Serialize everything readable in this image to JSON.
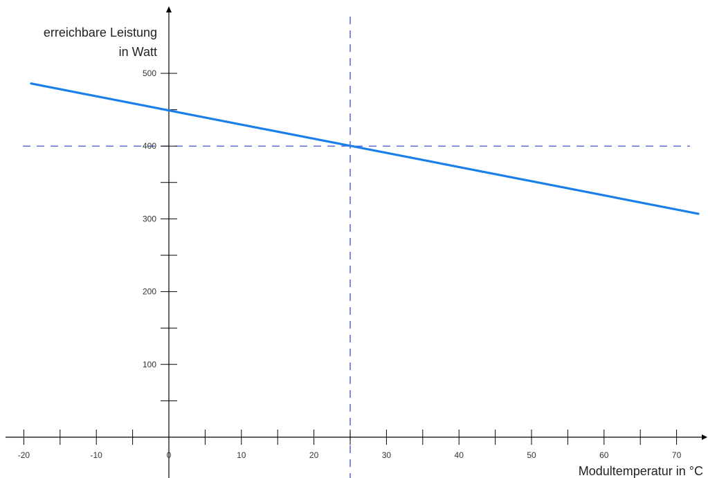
{
  "chart_data": {
    "type": "line",
    "ylabel_lines": [
      "erreichbare Leistung",
      "in Watt"
    ],
    "xlabel": "Modultemperatur in °C",
    "xlim": [
      -20,
      74
    ],
    "ylim": [
      0,
      530
    ],
    "x_tick_labels": [
      "-20",
      "-10",
      "0",
      "10",
      "20",
      "30",
      "40",
      "50",
      "60",
      "70"
    ],
    "y_tick_labels": [
      "100",
      "200",
      "300",
      "400",
      "500"
    ],
    "series": [
      {
        "x": [
          -19,
          73
        ],
        "y": [
          486,
          307
        ],
        "color": "#1a7fe8"
      }
    ],
    "reference_lines": {
      "vertical_x": 25,
      "horizontal_y": 400,
      "color": "#2a3fd0"
    },
    "axis_color": "#000000"
  }
}
